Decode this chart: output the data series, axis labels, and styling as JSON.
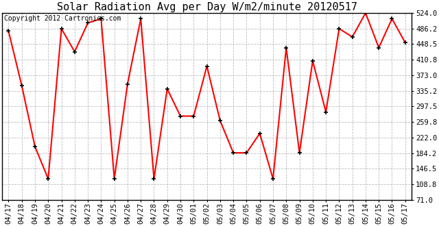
{
  "title": "Solar Radiation Avg per Day W/m2/minute 20120517",
  "copyright_text": "Copyright 2012 Cartronics.com",
  "labels": [
    "04/17",
    "04/18",
    "04/19",
    "04/20",
    "04/21",
    "04/22",
    "04/23",
    "04/24",
    "04/25",
    "04/26",
    "04/27",
    "04/28",
    "04/29",
    "04/30",
    "05/01",
    "05/02",
    "05/03",
    "05/04",
    "05/05",
    "05/06",
    "05/07",
    "05/08",
    "05/09",
    "05/10",
    "05/11",
    "05/12",
    "05/13",
    "05/14",
    "05/15",
    "05/16",
    "05/17"
  ],
  "values": [
    480,
    348,
    200,
    122,
    486,
    430,
    500,
    510,
    122,
    352,
    510,
    122,
    340,
    274,
    274,
    395,
    263,
    185,
    185,
    232,
    122,
    440,
    185,
    408,
    284,
    486,
    466,
    524,
    440,
    510,
    452
  ],
  "yticks": [
    71.0,
    108.8,
    146.5,
    184.2,
    222.0,
    259.8,
    297.5,
    335.2,
    373.0,
    410.8,
    448.5,
    486.2,
    524.0
  ],
  "ymin": 71.0,
  "ymax": 524.0,
  "line_color": "#ff0000",
  "marker_color": "#000000",
  "bg_color": "#ffffff",
  "grid_color": "#bbbbbb",
  "title_fontsize": 11,
  "copyright_fontsize": 7,
  "tick_fontsize": 7.5
}
